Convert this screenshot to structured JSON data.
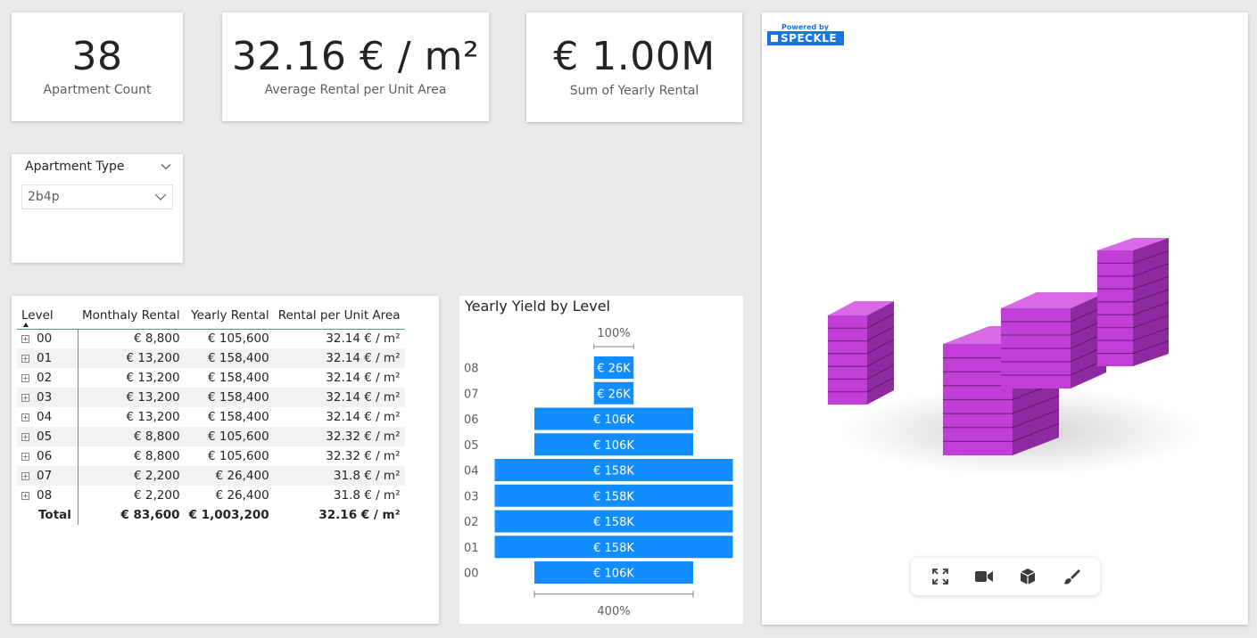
{
  "kpis": [
    {
      "value": "38",
      "label": "Apartment Count"
    },
    {
      "value": "32.16 € / m²",
      "label": "Average Rental per Unit Area"
    },
    {
      "value": "€ 1.00M",
      "label": "Sum of Yearly Rental"
    }
  ],
  "slicer": {
    "title": "Apartment Type",
    "selected": "2b4p"
  },
  "table": {
    "headers": [
      "Level",
      "Monthaly Rental",
      "Yearly Rental",
      "Rental per Unit Area"
    ],
    "rows": [
      {
        "level": "00",
        "monthly": "€ 8,800",
        "yearly": "€ 105,600",
        "per_area": "32.14 € / m²"
      },
      {
        "level": "01",
        "monthly": "€ 13,200",
        "yearly": "€ 158,400",
        "per_area": "32.14 € / m²"
      },
      {
        "level": "02",
        "monthly": "€ 13,200",
        "yearly": "€ 158,400",
        "per_area": "32.14 € / m²"
      },
      {
        "level": "03",
        "monthly": "€ 13,200",
        "yearly": "€ 158,400",
        "per_area": "32.14 € / m²"
      },
      {
        "level": "04",
        "monthly": "€ 13,200",
        "yearly": "€ 158,400",
        "per_area": "32.14 € / m²"
      },
      {
        "level": "05",
        "monthly": "€ 8,800",
        "yearly": "€ 105,600",
        "per_area": "32.32 € / m²"
      },
      {
        "level": "06",
        "monthly": "€ 8,800",
        "yearly": "€ 105,600",
        "per_area": "32.32 € / m²"
      },
      {
        "level": "07",
        "monthly": "€ 2,200",
        "yearly": "€ 26,400",
        "per_area": "31.8 € / m²"
      },
      {
        "level": "08",
        "monthly": "€ 2,200",
        "yearly": "€ 26,400",
        "per_area": "31.8 € / m²"
      }
    ],
    "total": {
      "label": "Total",
      "monthly": "€ 83,600",
      "yearly": "€ 1,003,200",
      "per_area": "32.16 € / m²"
    }
  },
  "chart_data": {
    "type": "bar",
    "subtype": "funnel",
    "title": "Yearly Yield by Level",
    "categories": [
      "08",
      "07",
      "06",
      "05",
      "04",
      "03",
      "02",
      "01",
      "00"
    ],
    "values": [
      26400,
      26400,
      105600,
      105600,
      158400,
      158400,
      158400,
      158400,
      105600
    ],
    "data_labels": [
      "€ 26K",
      "€ 26K",
      "€ 106K",
      "€ 106K",
      "€ 158K",
      "€ 158K",
      "€ 158K",
      "€ 158K",
      "€ 106K"
    ],
    "top_percent_label": "100%",
    "bottom_percent_label": "400%",
    "bar_color": "#118dff"
  },
  "viewer": {
    "powered_by": "Powered by",
    "brand": "SPECKLE",
    "model_color": "#c13fd6",
    "toolbar": [
      "fullscreen-icon",
      "camera-icon",
      "cube-icon",
      "brush-icon"
    ]
  }
}
